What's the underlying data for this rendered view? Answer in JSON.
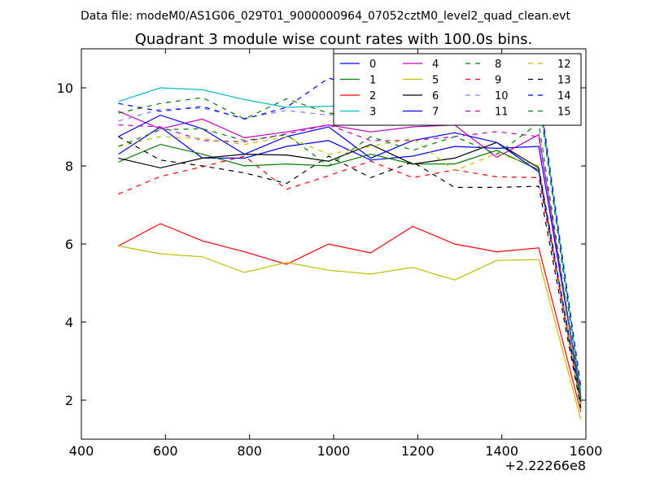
{
  "chart_data": {
    "type": "line",
    "suptitle": "Data file: modeM0/AS1G06_029T01_9000000964_07052cztM0_level2_quad_clean.evt",
    "title": "Quadrant 3 module wise count rates with 100.0s bins.",
    "xlabel": "",
    "ylabel": "",
    "x_offset_text": "+2.22266e8",
    "xlim": [
      400,
      1600
    ],
    "ylim": [
      1,
      11
    ],
    "xticks": [
      400,
      600,
      800,
      1000,
      1200,
      1400,
      1600
    ],
    "yticks": [
      2,
      4,
      6,
      8,
      10
    ],
    "grid": false,
    "legend_position": "top-right",
    "legend_columns": 4,
    "x": [
      488,
      588,
      688,
      788,
      888,
      988,
      1088,
      1188,
      1288,
      1388,
      1488,
      1588
    ],
    "series": [
      {
        "name": "0",
        "color": "#0000ff",
        "dash": "solid",
        "values": [
          8.3,
          9.0,
          8.2,
          8.2,
          8.5,
          8.65,
          8.15,
          8.25,
          8.5,
          8.45,
          8.5,
          2.1
        ]
      },
      {
        "name": "1",
        "color": "#008000",
        "dash": "solid",
        "values": [
          8.1,
          8.55,
          8.3,
          8.0,
          8.05,
          8.0,
          8.3,
          8.05,
          8.05,
          8.4,
          7.9,
          1.85
        ]
      },
      {
        "name": "2",
        "color": "#ff0000",
        "dash": "solid",
        "values": [
          5.95,
          6.52,
          6.08,
          5.8,
          5.48,
          6.0,
          5.77,
          6.45,
          6.0,
          5.8,
          5.9,
          1.7
        ]
      },
      {
        "name": "3",
        "color": "#00bfbf",
        "dash": "solid",
        "values": [
          9.65,
          10.0,
          9.95,
          9.7,
          9.5,
          9.53,
          9.58,
          9.85,
          9.2,
          9.05,
          9.9,
          2.2
        ]
      },
      {
        "name": "4",
        "color": "#bf00bf",
        "dash": "solid",
        "values": [
          9.4,
          8.95,
          9.2,
          8.72,
          8.87,
          9.05,
          8.87,
          9.0,
          9.05,
          8.22,
          8.8,
          2.05
        ]
      },
      {
        "name": "5",
        "color": "#bfbf00",
        "dash": "solid",
        "values": [
          5.95,
          5.75,
          5.67,
          5.27,
          5.53,
          5.33,
          5.23,
          5.4,
          5.08,
          5.58,
          5.6,
          1.5
        ]
      },
      {
        "name": "6",
        "color": "#000000",
        "dash": "solid",
        "values": [
          8.2,
          7.95,
          8.2,
          8.3,
          8.28,
          8.12,
          8.55,
          8.05,
          8.2,
          8.6,
          7.95,
          1.95
        ]
      },
      {
        "name": "7",
        "color": "#0000ff",
        "dash": "solid",
        "values": [
          8.75,
          9.3,
          8.95,
          8.3,
          8.75,
          9.0,
          8.2,
          8.65,
          8.85,
          8.6,
          7.85,
          2.0
        ]
      },
      {
        "name": "8",
        "color": "#008000",
        "dash": "dashed",
        "values": [
          9.35,
          9.6,
          9.75,
          9.2,
          9.72,
          9.35,
          9.3,
          9.4,
          10.18,
          9.5,
          9.75,
          2.05
        ]
      },
      {
        "name": "9",
        "color": "#ff0000",
        "dash": "dashed",
        "values": [
          7.28,
          7.73,
          7.98,
          8.25,
          7.4,
          7.75,
          8.12,
          7.7,
          7.9,
          7.72,
          7.7,
          1.9
        ]
      },
      {
        "name": "10",
        "color": "#8080ff",
        "dash": "dashed",
        "values": [
          9.15,
          9.45,
          9.48,
          9.22,
          9.42,
          9.3,
          9.45,
          9.6,
          9.68,
          9.8,
          10.05,
          2.3
        ]
      },
      {
        "name": "11",
        "color": "#bf00bf",
        "dash": "dashed",
        "values": [
          9.05,
          9.0,
          8.65,
          8.62,
          8.82,
          9.05,
          8.65,
          8.65,
          8.75,
          8.88,
          8.75,
          2.1
        ]
      },
      {
        "name": "12",
        "color": "#bfbf00",
        "dash": "dashed",
        "values": [
          8.5,
          8.75,
          8.7,
          8.55,
          8.75,
          8.3,
          8.5,
          8.7,
          7.88,
          8.32,
          8.0,
          1.9
        ]
      },
      {
        "name": "13",
        "color": "#000000",
        "dash": "dashed",
        "values": [
          8.75,
          8.15,
          8.0,
          7.82,
          7.55,
          8.25,
          7.7,
          8.1,
          7.45,
          7.45,
          7.48,
          1.8
        ]
      },
      {
        "name": "14",
        "color": "#0000ff",
        "dash": "dashed",
        "values": [
          9.6,
          9.4,
          9.52,
          9.2,
          9.5,
          10.25,
          9.95,
          9.4,
          9.65,
          9.65,
          9.85,
          2.35
        ]
      },
      {
        "name": "15",
        "color": "#008000",
        "dash": "dashed",
        "values": [
          8.5,
          8.93,
          8.95,
          8.65,
          8.8,
          8.0,
          8.75,
          8.4,
          8.75,
          8.3,
          9.1,
          1.95
        ]
      }
    ]
  }
}
